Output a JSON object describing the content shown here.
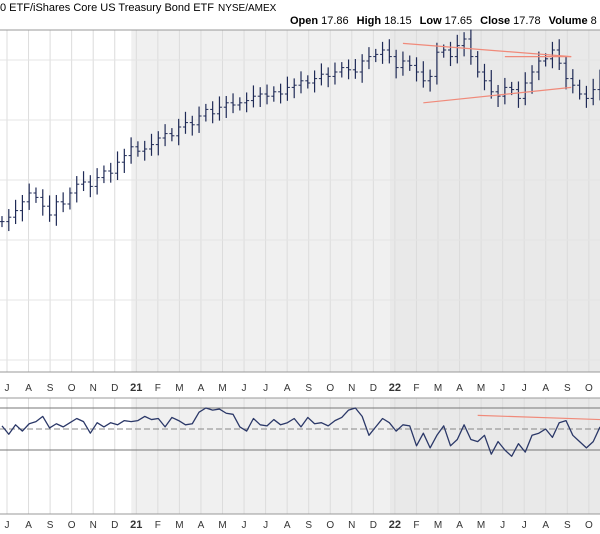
{
  "header": {
    "title": "0 ETF/iShares Core US Treasury Bond ETF",
    "exchange": "NYSE/AMEX",
    "open_label": "Open",
    "open": "17.86",
    "high_label": "High",
    "high": "18.15",
    "low_label": "Low",
    "low": "17.65",
    "close_label": "Close",
    "close": "17.78",
    "volume_label": "Volume",
    "volume": "8"
  },
  "chart_data": [
    {
      "type": "bar",
      "subtype": "ohlc",
      "panel": "price",
      "x_ticks": [
        "J",
        "A",
        "S",
        "O",
        "N",
        "D",
        "21",
        "F",
        "M",
        "A",
        "M",
        "J",
        "J",
        "A",
        "S",
        "O",
        "N",
        "D",
        "22",
        "F",
        "M",
        "A",
        "M",
        "J",
        "J",
        "A",
        "S",
        "O"
      ],
      "weekly_close": [
        0.22,
        0.24,
        0.27,
        0.31,
        0.35,
        0.33,
        0.29,
        0.25,
        0.31,
        0.3,
        0.35,
        0.39,
        0.4,
        0.38,
        0.42,
        0.45,
        0.44,
        0.49,
        0.52,
        0.56,
        0.54,
        0.55,
        0.57,
        0.6,
        0.62,
        0.61,
        0.65,
        0.67,
        0.66,
        0.7,
        0.73,
        0.71,
        0.74,
        0.76,
        0.75,
        0.76,
        0.77,
        0.79,
        0.8,
        0.79,
        0.81,
        0.8,
        0.83,
        0.84,
        0.86,
        0.85,
        0.87,
        0.89,
        0.88,
        0.9,
        0.92,
        0.91,
        0.9,
        0.95,
        0.97,
        0.98,
        1.0,
        0.97,
        0.92,
        0.95,
        0.93,
        0.9,
        0.86,
        0.88,
        0.99,
        1.0,
        0.97,
        1.02,
        1.05,
        0.97,
        0.9,
        0.86,
        0.81,
        0.79,
        0.83,
        0.82,
        0.78,
        0.85,
        0.9,
        0.95,
        0.96,
        1.0,
        0.94,
        0.87,
        0.84,
        0.8,
        0.78,
        0.82,
        0.88
      ],
      "trendlines": [
        {
          "from": [
            59,
            1.03
          ],
          "to": [
            82,
            0.97
          ]
        },
        {
          "from": [
            62,
            0.76
          ],
          "to": [
            82,
            0.83
          ]
        },
        {
          "from": [
            74,
            0.97
          ],
          "to": [
            82,
            0.97
          ]
        }
      ],
      "grid": true
    },
    {
      "type": "line",
      "panel": "indicator",
      "x_ticks": [
        "J",
        "A",
        "S",
        "O",
        "N",
        "D",
        "21",
        "F",
        "M",
        "A",
        "M",
        "J",
        "J",
        "A",
        "S",
        "O",
        "N",
        "D",
        "22",
        "F",
        "M",
        "A",
        "M",
        "J",
        "J",
        "A",
        "S",
        "O"
      ],
      "values": [
        0.15,
        -0.25,
        0.2,
        -0.1,
        0.25,
        0.35,
        0.6,
        0.05,
        0.25,
        0.1,
        0.3,
        0.5,
        0.35,
        -0.2,
        0.3,
        0.1,
        0.3,
        0.2,
        0.4,
        0.35,
        0.4,
        0.6,
        0.45,
        0.5,
        0.1,
        0.55,
        0.4,
        0.2,
        0.25,
        0.8,
        1.0,
        0.9,
        0.95,
        0.75,
        0.7,
        0.1,
        -0.1,
        0.5,
        0.2,
        0.15,
        0.45,
        0.2,
        0.3,
        0.5,
        0.1,
        0.55,
        0.25,
        0.3,
        0.15,
        0.4,
        0.55,
        0.9,
        1.0,
        0.6,
        -0.3,
        0.1,
        0.5,
        0.3,
        -0.1,
        0.2,
        0.15,
        -0.8,
        -0.2,
        -0.9,
        -0.3,
        0.15,
        -0.8,
        -0.5,
        0.2,
        -0.5,
        -0.6,
        -0.3,
        -1.2,
        -0.6,
        -1.0,
        -1.3,
        -0.7,
        -1.1,
        -0.3,
        -0.2,
        0.0,
        -0.4,
        0.3,
        0.4,
        -0.3,
        -0.6,
        -0.9,
        -0.6,
        0.1
      ],
      "reference_levels": [
        1.0,
        0.0,
        -1.0
      ],
      "trendlines": [
        {
          "from": [
            70,
            0.65
          ],
          "to": [
            82,
            0.45
          ]
        }
      ],
      "grid": true
    }
  ]
}
